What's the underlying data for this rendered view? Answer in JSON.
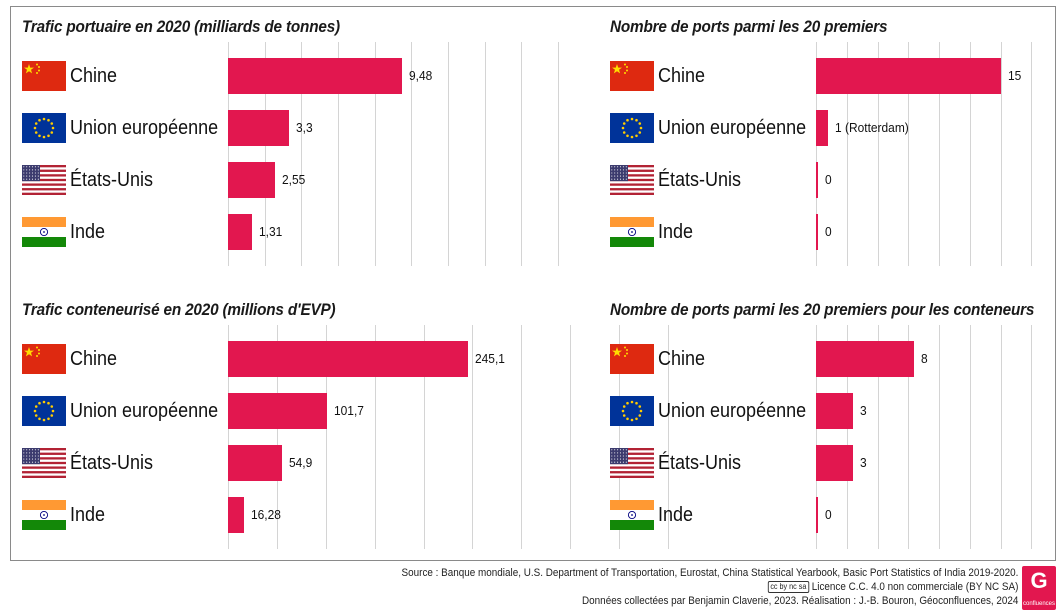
{
  "chart_data": [
    {
      "type": "bar",
      "title": "Trafic portuaire en 2020 (milliards de tonnes)",
      "categories": [
        "Chine",
        "Union européenne",
        "États-Unis",
        "Inde"
      ],
      "values": [
        9.48,
        3.3,
        2.55,
        1.31
      ],
      "value_labels": [
        "9,48",
        "3,3",
        "2,55",
        "1,31"
      ],
      "xlim": [
        0,
        18
      ],
      "grid": true,
      "orientation": "horizontal"
    },
    {
      "type": "bar",
      "title": "Nombre de ports parmi les 20 premiers",
      "categories": [
        "Chine",
        "Union européenne",
        "États-Unis",
        "Inde"
      ],
      "values": [
        15,
        1,
        0,
        0
      ],
      "value_labels": [
        "15",
        "1 (Rotterdam)",
        "0",
        "0"
      ],
      "xlim": [
        0,
        20
      ],
      "grid": true,
      "orientation": "horizontal"
    },
    {
      "type": "bar",
      "title": "Trafic conteneurisé en 2020 (millions d'EVP)",
      "categories": [
        "Chine",
        "Union européenne",
        "États-Unis",
        "Inde"
      ],
      "values": [
        245.1,
        101.7,
        54.9,
        16.28
      ],
      "value_labels": [
        "245,1",
        "101,7",
        "54,9",
        "16,28"
      ],
      "xlim": [
        0,
        450
      ],
      "grid": true,
      "orientation": "horizontal"
    },
    {
      "type": "bar",
      "title": "Nombre de ports parmi les 20 premiers pour les conteneurs",
      "categories": [
        "Chine",
        "Union européenne",
        "États-Unis",
        "Inde"
      ],
      "values": [
        8,
        3,
        3,
        0
      ],
      "value_labels": [
        "8",
        "3",
        "3",
        "0"
      ],
      "xlim": [
        0,
        20
      ],
      "grid": true,
      "orientation": "horizontal"
    }
  ],
  "flags": [
    "china-flag",
    "eu-flag",
    "usa-flag",
    "india-flag"
  ],
  "colors": {
    "bar": "#e2174f",
    "grid": "#d4d4d4"
  },
  "footer": {
    "source": "Source : Banque mondiale, U.S. Department of Transportation, Eurostat, China Statistical Yearbook, Basic Port Statistics of India 2019-2020.",
    "license": "Licence C.C. 4.0 non commerciale (BY NC SA)",
    "credits": "Données collectées par Benjamin Claverie, 2023. Réalisation : J.-B. Bouron, Géoconfluences, 2024",
    "logo_letter": "G",
    "logo_text": "confluences"
  }
}
